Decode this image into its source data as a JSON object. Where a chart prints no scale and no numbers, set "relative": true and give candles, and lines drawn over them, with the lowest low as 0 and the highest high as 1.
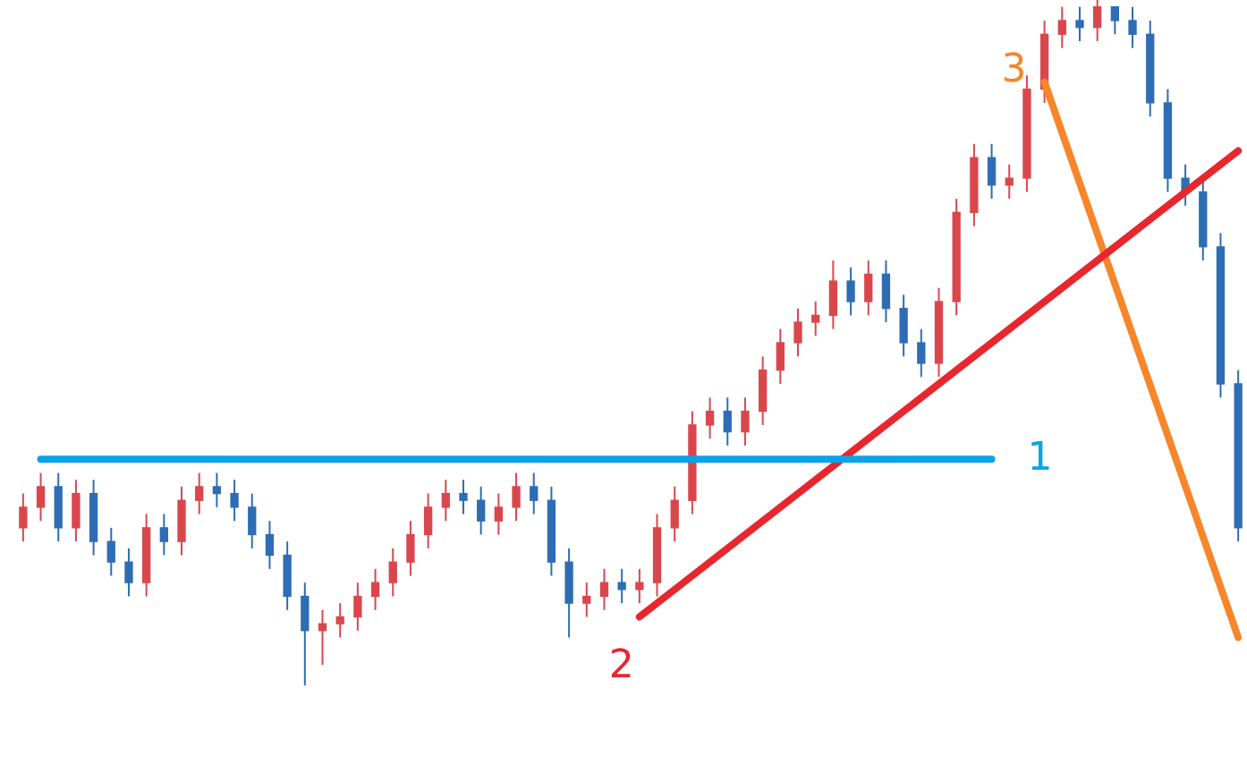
{
  "chart_data": {
    "type": "candlestick",
    "relative": true,
    "tick_labels": false,
    "legend": false,
    "categories": [
      null,
      null,
      null,
      null,
      null,
      null,
      null,
      null,
      null,
      null,
      null,
      null,
      null,
      null,
      null,
      null,
      null,
      null,
      null,
      null,
      null,
      null,
      null,
      null,
      null,
      null,
      null,
      null,
      null,
      null,
      null,
      null,
      null,
      null,
      null,
      null,
      null,
      null,
      null,
      null,
      null,
      null,
      null,
      null,
      null,
      null,
      null,
      null,
      null,
      null,
      null,
      null,
      null,
      null,
      null,
      null,
      null,
      null,
      null,
      null,
      null,
      null,
      null,
      null,
      null,
      null,
      null,
      null,
      null,
      null
    ],
    "ohlc": [
      [
        0.23,
        0.28,
        0.21,
        0.26
      ],
      [
        0.26,
        0.31,
        0.24,
        0.29
      ],
      [
        0.29,
        0.31,
        0.21,
        0.23
      ],
      [
        0.23,
        0.3,
        0.21,
        0.28
      ],
      [
        0.28,
        0.3,
        0.19,
        0.21
      ],
      [
        0.21,
        0.23,
        0.16,
        0.18
      ],
      [
        0.18,
        0.2,
        0.13,
        0.15
      ],
      [
        0.15,
        0.25,
        0.13,
        0.23
      ],
      [
        0.23,
        0.25,
        0.19,
        0.21
      ],
      [
        0.21,
        0.29,
        0.19,
        0.27
      ],
      [
        0.27,
        0.31,
        0.25,
        0.29
      ],
      [
        0.29,
        0.31,
        0.26,
        0.28
      ],
      [
        0.28,
        0.3,
        0.24,
        0.26
      ],
      [
        0.26,
        0.28,
        0.2,
        0.22
      ],
      [
        0.22,
        0.24,
        0.17,
        0.19
      ],
      [
        0.19,
        0.21,
        0.11,
        0.13
      ],
      [
        0.13,
        0.15,
        0.0,
        0.08
      ],
      [
        0.08,
        0.11,
        0.03,
        0.09
      ],
      [
        0.09,
        0.12,
        0.07,
        0.1
      ],
      [
        0.1,
        0.15,
        0.08,
        0.13
      ],
      [
        0.13,
        0.17,
        0.11,
        0.15
      ],
      [
        0.15,
        0.2,
        0.13,
        0.18
      ],
      [
        0.18,
        0.24,
        0.16,
        0.22
      ],
      [
        0.22,
        0.28,
        0.2,
        0.26
      ],
      [
        0.26,
        0.3,
        0.24,
        0.28
      ],
      [
        0.28,
        0.3,
        0.25,
        0.27
      ],
      [
        0.27,
        0.29,
        0.22,
        0.24
      ],
      [
        0.24,
        0.28,
        0.22,
        0.26
      ],
      [
        0.26,
        0.31,
        0.24,
        0.29
      ],
      [
        0.29,
        0.31,
        0.25,
        0.27
      ],
      [
        0.27,
        0.29,
        0.16,
        0.18
      ],
      [
        0.18,
        0.2,
        0.07,
        0.12
      ],
      [
        0.12,
        0.15,
        0.1,
        0.13
      ],
      [
        0.13,
        0.17,
        0.11,
        0.15
      ],
      [
        0.15,
        0.17,
        0.12,
        0.14
      ],
      [
        0.14,
        0.17,
        0.12,
        0.15
      ],
      [
        0.15,
        0.25,
        0.13,
        0.23
      ],
      [
        0.23,
        0.29,
        0.21,
        0.27
      ],
      [
        0.27,
        0.4,
        0.25,
        0.38
      ],
      [
        0.38,
        0.42,
        0.36,
        0.4
      ],
      [
        0.4,
        0.42,
        0.35,
        0.37
      ],
      [
        0.37,
        0.42,
        0.35,
        0.4
      ],
      [
        0.4,
        0.48,
        0.38,
        0.46
      ],
      [
        0.46,
        0.52,
        0.44,
        0.5
      ],
      [
        0.5,
        0.55,
        0.48,
        0.53
      ],
      [
        0.53,
        0.56,
        0.51,
        0.54
      ],
      [
        0.54,
        0.62,
        0.52,
        0.59
      ],
      [
        0.59,
        0.61,
        0.54,
        0.56
      ],
      [
        0.56,
        0.62,
        0.54,
        0.6
      ],
      [
        0.6,
        0.62,
        0.53,
        0.55
      ],
      [
        0.55,
        0.57,
        0.48,
        0.5
      ],
      [
        0.5,
        0.52,
        0.45,
        0.47
      ],
      [
        0.47,
        0.58,
        0.45,
        0.56
      ],
      [
        0.56,
        0.71,
        0.54,
        0.69
      ],
      [
        0.69,
        0.79,
        0.67,
        0.77
      ],
      [
        0.77,
        0.79,
        0.71,
        0.73
      ],
      [
        0.73,
        0.76,
        0.71,
        0.74
      ],
      [
        0.74,
        0.89,
        0.72,
        0.87
      ],
      [
        0.87,
        0.97,
        0.85,
        0.95
      ],
      [
        0.95,
        0.99,
        0.93,
        0.97
      ],
      [
        0.97,
        0.99,
        0.94,
        0.96
      ],
      [
        0.96,
        1.0,
        0.94,
        0.99
      ],
      [
        0.99,
        0.99,
        0.95,
        0.97
      ],
      [
        0.97,
        0.99,
        0.93,
        0.95
      ],
      [
        0.95,
        0.97,
        0.83,
        0.85
      ],
      [
        0.85,
        0.87,
        0.72,
        0.74
      ],
      [
        0.74,
        0.76,
        0.7,
        0.72
      ],
      [
        0.72,
        0.74,
        0.62,
        0.64
      ],
      [
        0.64,
        0.66,
        0.42,
        0.44
      ],
      [
        0.44,
        0.46,
        0.21,
        0.23
      ]
    ],
    "colors": [
      "#d9474d",
      "#d9474d",
      "#2e6db4",
      "#d9474d",
      "#2e6db4",
      "#2e6db4",
      "#2e6db4",
      "#d9474d",
      "#2e6db4",
      "#d9474d",
      "#d9474d",
      "#2e6db4",
      "#2e6db4",
      "#2e6db4",
      "#2e6db4",
      "#2e6db4",
      "#2e6db4",
      "#d9474d",
      "#d9474d",
      "#d9474d",
      "#d9474d",
      "#d9474d",
      "#d9474d",
      "#d9474d",
      "#d9474d",
      "#2e6db4",
      "#2e6db4",
      "#d9474d",
      "#d9474d",
      "#2e6db4",
      "#2e6db4",
      "#2e6db4",
      "#d9474d",
      "#d9474d",
      "#2e6db4",
      "#d9474d",
      "#d9474d",
      "#d9474d",
      "#d9474d",
      "#d9474d",
      "#2e6db4",
      "#d9474d",
      "#d9474d",
      "#d9474d",
      "#d9474d",
      "#d9474d",
      "#d9474d",
      "#2e6db4",
      "#d9474d",
      "#2e6db4",
      "#2e6db4",
      "#2e6db4",
      "#d9474d",
      "#d9474d",
      "#d9474d",
      "#2e6db4",
      "#d9474d",
      "#d9474d",
      "#d9474d",
      "#d9474d",
      "#2e6db4",
      "#d9474d",
      "#2e6db4",
      "#2e6db4",
      "#2e6db4",
      "#2e6db4",
      "#2e6db4",
      "#2e6db4",
      "#2e6db4",
      "#2e6db4"
    ],
    "series": [
      {
        "type": "line",
        "name": "1",
        "color": "#0aa3e8",
        "values": [
          null,
          0.33,
          null,
          null,
          null,
          null,
          null,
          null,
          null,
          null,
          null,
          null,
          null,
          null,
          null,
          null,
          null,
          null,
          null,
          null,
          null,
          null,
          null,
          null,
          null,
          null,
          null,
          null,
          null,
          null,
          null,
          null,
          null,
          null,
          null,
          null,
          null,
          null,
          null,
          null,
          null,
          null,
          null,
          null,
          null,
          null,
          null,
          null,
          null,
          null,
          null,
          null,
          null,
          null,
          null,
          0.33,
          null,
          null,
          null,
          null,
          null,
          null,
          null,
          null,
          null,
          null,
          null,
          null,
          null,
          null
        ]
      },
      {
        "type": "line",
        "name": "2",
        "color": "#e8262e",
        "values": [
          null,
          null,
          null,
          null,
          null,
          null,
          null,
          null,
          null,
          null,
          null,
          null,
          null,
          null,
          null,
          null,
          null,
          null,
          null,
          null,
          null,
          null,
          null,
          null,
          null,
          null,
          null,
          null,
          null,
          null,
          null,
          null,
          null,
          null,
          null,
          0.1,
          null,
          null,
          null,
          null,
          null,
          null,
          null,
          null,
          null,
          null,
          null,
          null,
          null,
          null,
          null,
          null,
          null,
          null,
          null,
          null,
          null,
          null,
          null,
          null,
          null,
          null,
          null,
          null,
          null,
          null,
          null,
          null,
          null,
          0.78
        ]
      },
      {
        "type": "line",
        "name": "3",
        "color": "#f7862a",
        "values": [
          null,
          null,
          null,
          null,
          null,
          null,
          null,
          null,
          null,
          null,
          null,
          null,
          null,
          null,
          null,
          null,
          null,
          null,
          null,
          null,
          null,
          null,
          null,
          null,
          null,
          null,
          null,
          null,
          null,
          null,
          null,
          null,
          null,
          null,
          null,
          null,
          null,
          null,
          null,
          null,
          null,
          null,
          null,
          null,
          null,
          null,
          null,
          null,
          null,
          null,
          null,
          null,
          null,
          null,
          null,
          null,
          null,
          null,
          0.88,
          null,
          null,
          null,
          null,
          null,
          null,
          null,
          null,
          null,
          null,
          0.07
        ]
      }
    ]
  }
}
